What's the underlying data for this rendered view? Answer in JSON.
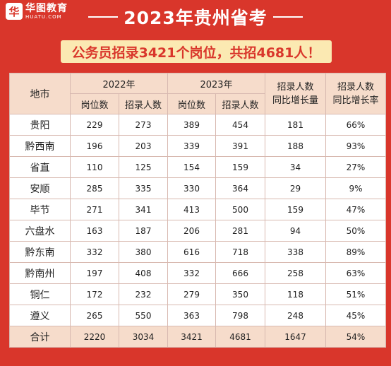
{
  "brand": {
    "logo_mark": "华",
    "name_cn": "华图教育",
    "name_en": "HUATU.COM"
  },
  "title": "2023年贵州省考",
  "banner": "公务员招录3421个岗位，共招4681人！",
  "table": {
    "header_region": "地市",
    "header_2022": "2022年",
    "header_2023": "2023年",
    "header_growth_count": "招录人数\n同比增长量",
    "header_growth_rate": "招录人数\n同比增长率",
    "sub_positions": "岗位数",
    "sub_recruits": "招录人数",
    "rows": [
      {
        "region": "贵阳",
        "pos2022": "229",
        "rec2022": "273",
        "pos2023": "389",
        "rec2023": "454",
        "growth": "181",
        "rate": "66%"
      },
      {
        "region": "黔西南",
        "pos2022": "196",
        "rec2022": "203",
        "pos2023": "339",
        "rec2023": "391",
        "growth": "188",
        "rate": "93%"
      },
      {
        "region": "省直",
        "pos2022": "110",
        "rec2022": "125",
        "pos2023": "154",
        "rec2023": "159",
        "growth": "34",
        "rate": "27%"
      },
      {
        "region": "安顺",
        "pos2022": "285",
        "rec2022": "335",
        "pos2023": "330",
        "rec2023": "364",
        "growth": "29",
        "rate": "9%"
      },
      {
        "region": "毕节",
        "pos2022": "271",
        "rec2022": "341",
        "pos2023": "413",
        "rec2023": "500",
        "growth": "159",
        "rate": "47%"
      },
      {
        "region": "六盘水",
        "pos2022": "163",
        "rec2022": "187",
        "pos2023": "206",
        "rec2023": "281",
        "growth": "94",
        "rate": "50%"
      },
      {
        "region": "黔东南",
        "pos2022": "332",
        "rec2022": "380",
        "pos2023": "616",
        "rec2023": "718",
        "growth": "338",
        "rate": "89%"
      },
      {
        "region": "黔南州",
        "pos2022": "197",
        "rec2022": "408",
        "pos2023": "332",
        "rec2023": "666",
        "growth": "258",
        "rate": "63%"
      },
      {
        "region": "铜仁",
        "pos2022": "172",
        "rec2022": "232",
        "pos2023": "279",
        "rec2023": "350",
        "growth": "118",
        "rate": "51%"
      },
      {
        "region": "遵义",
        "pos2022": "265",
        "rec2022": "550",
        "pos2023": "363",
        "rec2023": "798",
        "growth": "248",
        "rate": "45%"
      }
    ],
    "total": {
      "region": "合计",
      "pos2022": "2220",
      "rec2022": "3034",
      "pos2023": "3421",
      "rec2023": "4681",
      "growth": "1647",
      "rate": "54%"
    }
  }
}
